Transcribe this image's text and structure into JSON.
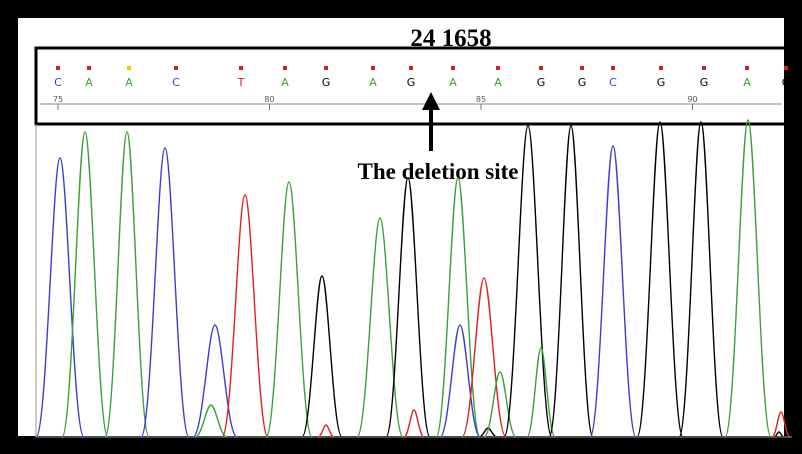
{
  "figure": {
    "title": "24 1658",
    "annotation": "The deletion site"
  },
  "ruler": {
    "ticks": [
      {
        "label": "75",
        "pos": 75
      },
      {
        "label": "80",
        "pos": 80
      },
      {
        "label": "85",
        "pos": 85
      },
      {
        "label": "90",
        "pos": 90
      }
    ]
  },
  "base_colors": {
    "A": "#3ca03c",
    "C": "#3c3cd2",
    "G": "#000000",
    "T": "#e02020"
  },
  "bases": [
    {
      "base": "C",
      "quality": "red"
    },
    {
      "base": "A",
      "quality": "red"
    },
    {
      "base": "A",
      "quality": "yellow"
    },
    {
      "base": "C",
      "quality": "red"
    },
    {
      "base": "T",
      "quality": "red"
    },
    {
      "base": "A",
      "quality": "red"
    },
    {
      "base": "G",
      "quality": "red"
    },
    {
      "base": "A",
      "quality": "red"
    },
    {
      "base": "G",
      "quality": "red"
    },
    {
      "base": "A",
      "quality": "red"
    },
    {
      "base": "A",
      "quality": "red"
    },
    {
      "base": "G",
      "quality": "red"
    },
    {
      "base": "G",
      "quality": "red"
    },
    {
      "base": "C",
      "quality": "red"
    },
    {
      "base": "G",
      "quality": "red"
    },
    {
      "base": "G",
      "quality": "red"
    },
    {
      "base": "A",
      "quality": "red"
    },
    {
      "base": "G",
      "quality": "red"
    }
  ]
}
